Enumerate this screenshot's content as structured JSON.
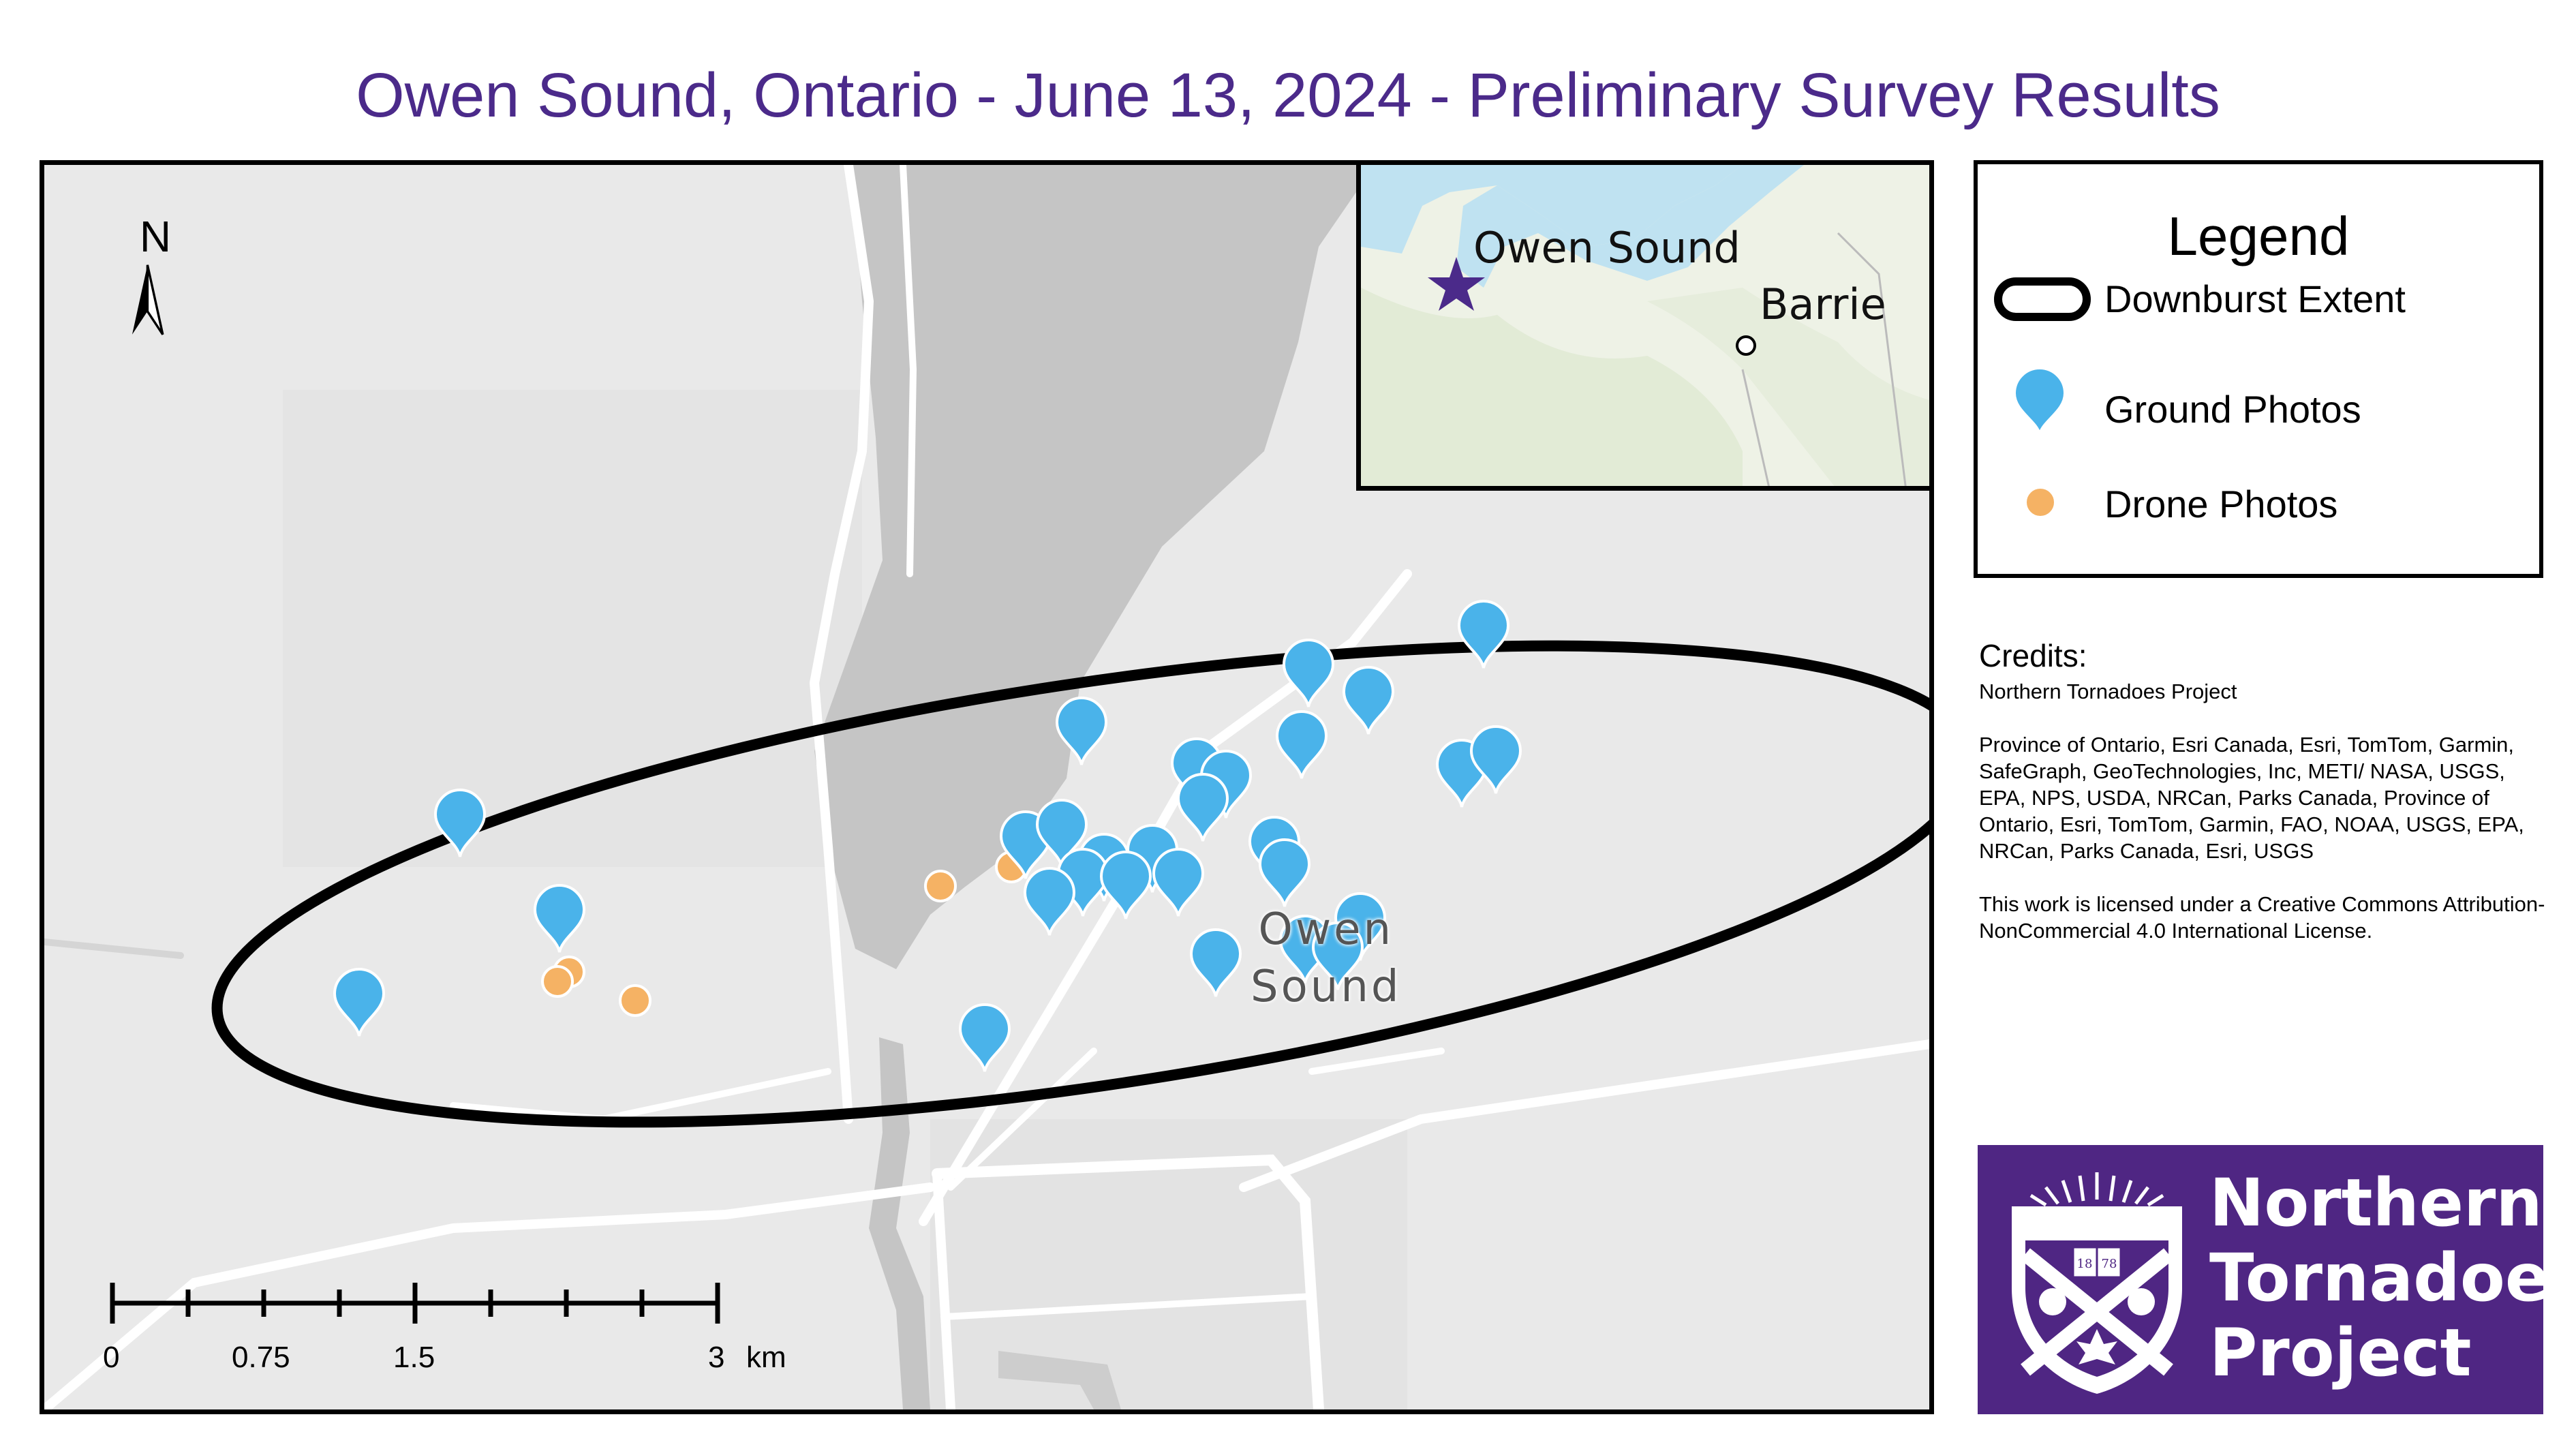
{
  "title": "Owen Sound, Ontario - June 13, 2024 - Preliminary Survey Results",
  "map": {
    "north_label": "N",
    "city_label_line1": "Owen",
    "city_label_line2": "Sound",
    "scale_bar": {
      "labels": [
        "0",
        "0.75",
        "1.5",
        "3"
      ],
      "unit": "km"
    },
    "colors": {
      "land": "#eaeaea",
      "water": "#c6c6c6",
      "roads": "#ffffff",
      "ellipse": "#000000",
      "ground_photo": "#4ab3ea",
      "drone_photo": "#f5b264"
    }
  },
  "inset": {
    "place_owen_sound": "Owen Sound",
    "place_barrie": "Barrie",
    "colors": {
      "water": "#bfe2f1",
      "land": "#eef2e6",
      "star": "#4b2a8a"
    }
  },
  "legend": {
    "title": "Legend",
    "items": [
      {
        "label": "Downburst Extent",
        "icon": "ellipse-outline-icon"
      },
      {
        "label": "Ground Photos",
        "icon": "map-pin-icon"
      },
      {
        "label": "Drone Photos",
        "icon": "dot-icon"
      }
    ]
  },
  "credits": {
    "heading": "Credits:",
    "paragraphs": [
      "Northern Tornadoes Project",
      "Province of Ontario, Esri Canada, Esri, TomTom, Garmin, SafeGraph, GeoTechnologies, Inc, METI/ NASA, USGS, EPA, NPS, USDA, NRCan, Parks Canada, Province of Ontario, Esri, TomTom, Garmin, FAO, NOAA, USGS, EPA, NRCan, Parks Canada, Esri, USGS",
      "This work is licensed under a Creative Commons Attribution-NonCommercial 4.0 International License."
    ]
  },
  "logo": {
    "line1": "Northern",
    "line2": "Tornadoes",
    "line3": "Project",
    "shield_year_left": "18",
    "shield_year_right": "78",
    "colors": {
      "background": "#4f2683",
      "text": "#ffffff"
    }
  }
}
